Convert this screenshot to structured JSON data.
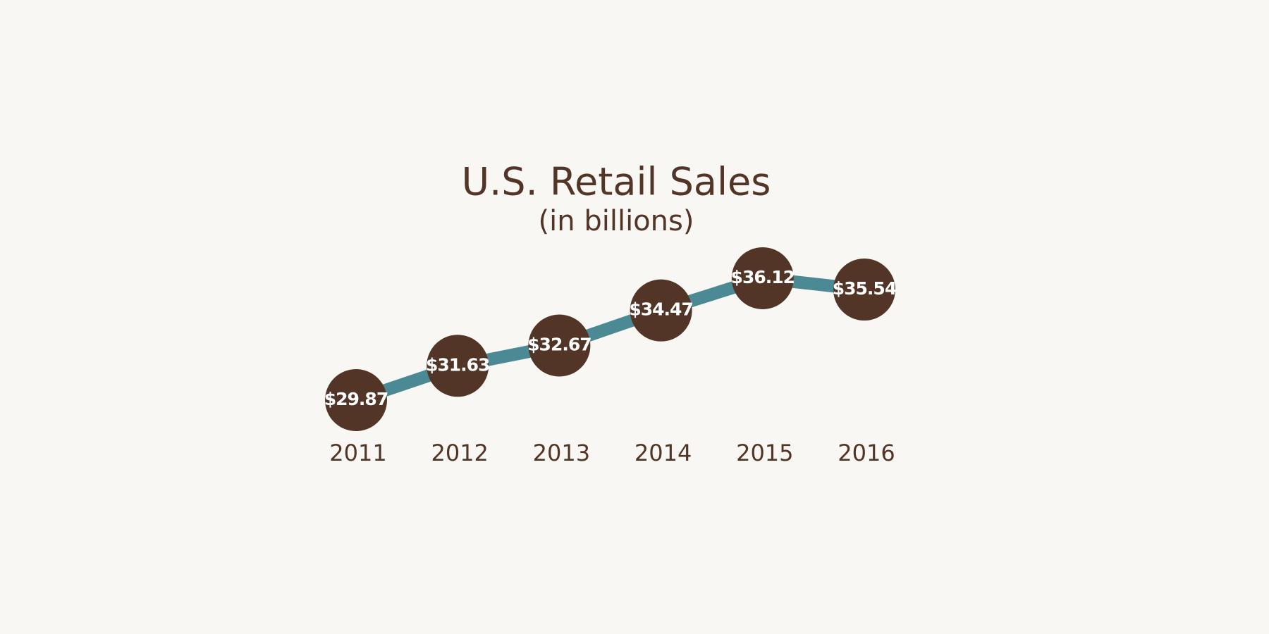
{
  "chart_data": {
    "type": "line",
    "title": "U.S. Retail Sales",
    "subtitle": "(in billions)",
    "categories": [
      "2011",
      "2012",
      "2013",
      "2014",
      "2015",
      "2016"
    ],
    "values": [
      29.87,
      31.63,
      32.67,
      34.47,
      36.12,
      35.54
    ],
    "value_labels": [
      "$29.87",
      "$31.63",
      "$32.67",
      "$34.47",
      "$36.12",
      "$35.54"
    ],
    "color": "#4b8a94",
    "marker_color": "#523527"
  }
}
